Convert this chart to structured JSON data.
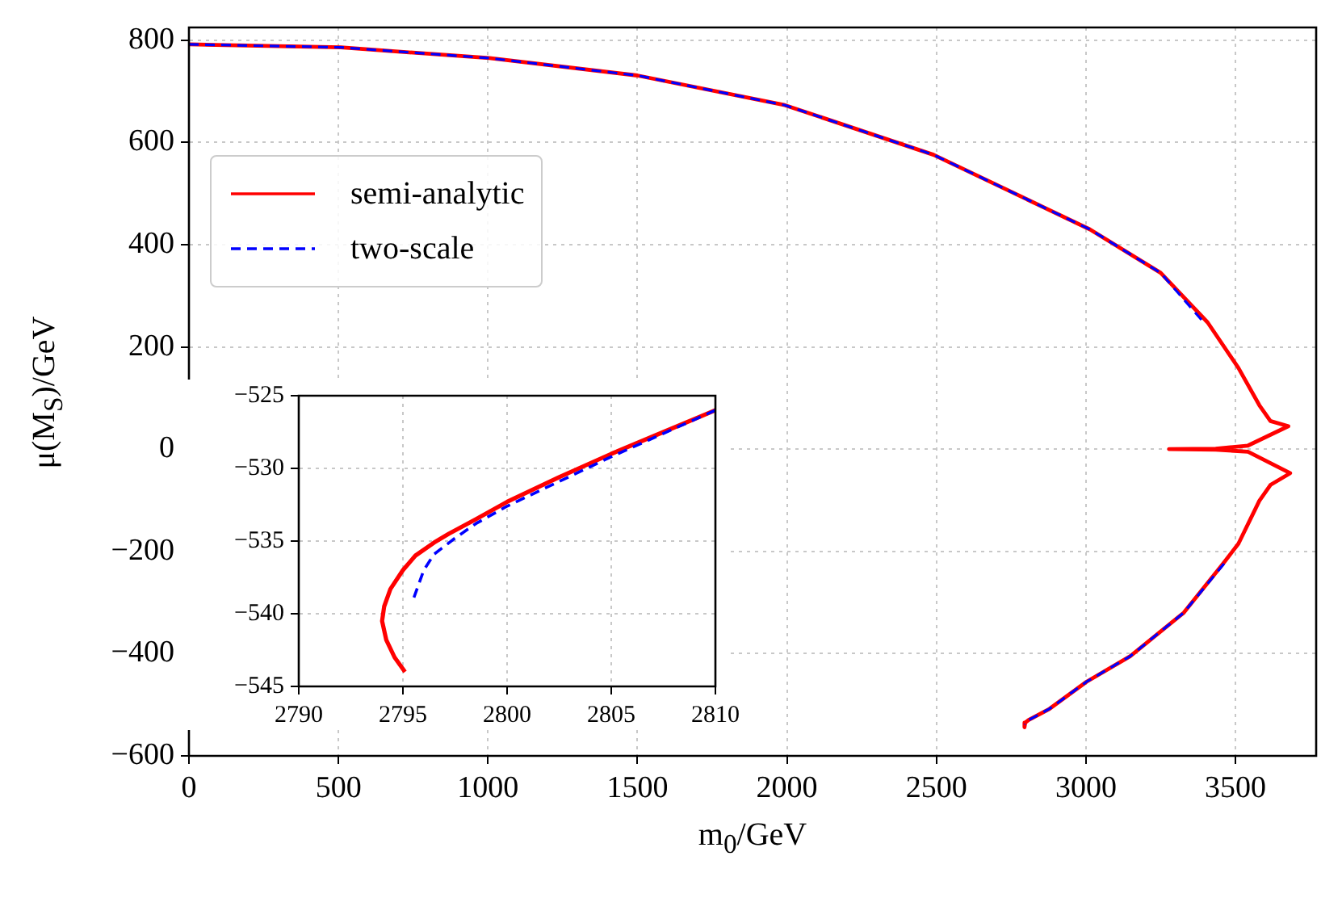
{
  "chart_data": [
    {
      "type": "line",
      "xlabel": "m$_{0}$/GeV",
      "ylabel": "μ(M$_{S}$)/GeV",
      "xlim": [
        0,
        3770
      ],
      "ylim": [
        -600,
        825
      ],
      "xticks": [
        0,
        500,
        1000,
        1500,
        2000,
        2500,
        3000,
        3500
      ],
      "yticks": [
        -600,
        -400,
        -200,
        0,
        200,
        400,
        600,
        800
      ],
      "grid": true,
      "legend": "center left",
      "marker": "none",
      "series": [
        {
          "name": "semi-analytic",
          "color": "#ff0000",
          "line_style": "solid",
          "x": [
            0,
            508,
            1005,
            1500,
            1993,
            2490,
            3013,
            3250,
            3407,
            3510,
            3580,
            3617,
            3677,
            3542,
            3434,
            3278,
            3434,
            3542,
            3683,
            3617,
            3580,
            3510,
            3456,
            3327,
            3148,
            3002,
            2878,
            2808,
            2797,
            2794,
            2795
          ],
          "values": [
            792,
            786,
            765,
            731,
            673,
            576,
            430,
            345,
            248,
            159,
            86,
            55,
            45,
            7,
            1,
            0,
            -1,
            -5,
            -47,
            -70,
            -101,
            -185,
            -226,
            -320,
            -405,
            -455,
            -508,
            -530,
            -535,
            -541,
            -544
          ]
        },
        {
          "name": "two-scale",
          "color": "#0000ff",
          "line_style": "dashed",
          "x": [
            0,
            508,
            1005,
            1500,
            1993,
            2490,
            3013,
            3250,
            3400,
            null,
            3462,
            3327,
            3148,
            3002,
            2878,
            2808,
            2798,
            2795.5
          ],
          "values": [
            792,
            786,
            765,
            731,
            673,
            576,
            430,
            345,
            244,
            null,
            -224,
            -320,
            -405,
            -455,
            -508,
            -530,
            -534,
            -539
          ]
        }
      ]
    },
    {
      "type": "line",
      "xlim": [
        2790,
        2810
      ],
      "ylim": [
        -545,
        -525
      ],
      "xticks": [
        2790,
        2795,
        2800,
        2805,
        2810
      ],
      "yticks": [
        -545,
        -540,
        -535,
        -530,
        -525
      ],
      "grid": true,
      "legend": false,
      "marker": "none",
      "series": [
        {
          "color": "#ff0000",
          "line_style": "solid",
          "x": [
            2810,
            2807.5,
            2805,
            2802.5,
            2800,
            2798.5,
            2797.2,
            2796.5,
            2795.6,
            2795,
            2794.4,
            2794.1,
            2794,
            2794.2,
            2794.6,
            2795.1
          ],
          "values": [
            -526,
            -527.5,
            -529,
            -530.6,
            -532.3,
            -533.5,
            -534.5,
            -535.1,
            -536,
            -537,
            -538.3,
            -539.5,
            -540.5,
            -541.8,
            -543,
            -544
          ]
        },
        {
          "color": "#0000ff",
          "line_style": "dashed",
          "x": [
            2810,
            2807.5,
            2805,
            2802.5,
            2800,
            2798.5,
            2797.5,
            2796.5,
            2796,
            2795.5
          ],
          "values": [
            -526,
            -527.6,
            -529.2,
            -530.9,
            -532.6,
            -533.8,
            -534.8,
            -535.9,
            -537,
            -539
          ]
        }
      ]
    }
  ]
}
